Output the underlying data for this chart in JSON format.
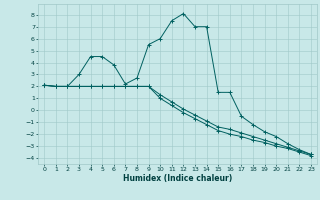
{
  "xlabel": "Humidex (Indice chaleur)",
  "background_color": "#c8e8e8",
  "grid_color": "#a0c8c8",
  "line_color": "#006060",
  "xlim": [
    -0.5,
    23.5
  ],
  "ylim": [
    -4.5,
    8.9
  ],
  "xticks": [
    0,
    1,
    2,
    3,
    4,
    5,
    6,
    7,
    8,
    9,
    10,
    11,
    12,
    13,
    14,
    15,
    16,
    17,
    18,
    19,
    20,
    21,
    22,
    23
  ],
  "yticks": [
    -4,
    -3,
    -2,
    -1,
    0,
    1,
    2,
    3,
    4,
    5,
    6,
    7,
    8
  ],
  "series": [
    {
      "x": [
        0,
        1,
        2,
        3,
        4,
        5,
        6,
        7,
        8,
        9,
        10,
        11,
        12,
        13,
        14,
        15,
        16,
        17,
        18,
        19,
        20,
        21,
        22,
        23
      ],
      "y": [
        2.1,
        2.0,
        2.0,
        3.0,
        4.5,
        4.5,
        3.8,
        2.2,
        2.7,
        5.5,
        6.0,
        7.5,
        8.1,
        7.0,
        7.0,
        1.5,
        1.5,
        -0.5,
        -1.2,
        -1.8,
        -2.2,
        -2.8,
        -3.3,
        -3.7
      ]
    },
    {
      "x": [
        0,
        1,
        2,
        3,
        4,
        5,
        6,
        7,
        8,
        9,
        10,
        11,
        12,
        13,
        14,
        15,
        16,
        17,
        18,
        19,
        20,
        21,
        22,
        23
      ],
      "y": [
        2.1,
        2.0,
        2.0,
        2.0,
        2.0,
        2.0,
        2.0,
        2.0,
        2.0,
        2.0,
        1.3,
        0.7,
        0.1,
        -0.4,
        -0.9,
        -1.4,
        -1.6,
        -1.9,
        -2.2,
        -2.5,
        -2.8,
        -3.1,
        -3.4,
        -3.7
      ]
    },
    {
      "x": [
        0,
        1,
        2,
        3,
        4,
        5,
        6,
        7,
        8,
        9,
        10,
        11,
        12,
        13,
        14,
        15,
        16,
        17,
        18,
        19,
        20,
        21,
        22,
        23
      ],
      "y": [
        2.1,
        2.0,
        2.0,
        2.0,
        2.0,
        2.0,
        2.0,
        2.0,
        2.0,
        2.0,
        1.0,
        0.4,
        -0.2,
        -0.7,
        -1.2,
        -1.7,
        -2.0,
        -2.2,
        -2.5,
        -2.7,
        -3.0,
        -3.2,
        -3.5,
        -3.8
      ]
    }
  ]
}
